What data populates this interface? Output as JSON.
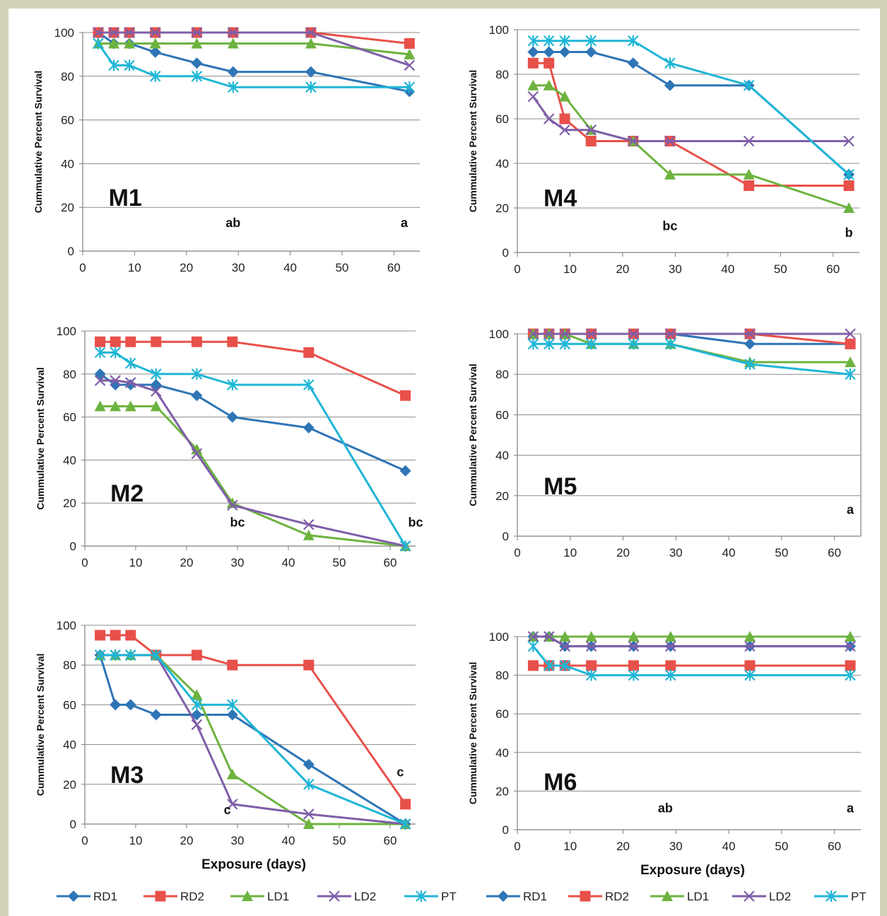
{
  "colors": {
    "RD1": "#2e75b6",
    "RD2": "#e8504a",
    "LD1": "#6db33f",
    "LD2": "#7f5ea8",
    "PT": "#1fb6d6",
    "grid": "#8c8c8c",
    "axis": "#7f7f7f",
    "page_background": "#d3d2b6"
  },
  "chart_data": [
    {
      "type": "line",
      "title": "M1",
      "xlabel": "",
      "ylabel": "Cummulative Percent Survival",
      "xlim": [
        0,
        65
      ],
      "ylim": [
        0,
        100
      ],
      "xticks": [
        0,
        10,
        20,
        30,
        40,
        50,
        60
      ],
      "yticks": [
        0,
        20,
        40,
        60,
        80,
        100
      ],
      "x": [
        3,
        6,
        9,
        14,
        22,
        29,
        44,
        63
      ],
      "series": [
        {
          "name": "RD1",
          "marker": "diamond",
          "values": [
            100,
            95,
            95,
            91,
            86,
            82,
            82,
            73
          ]
        },
        {
          "name": "RD2",
          "marker": "square",
          "values": [
            100,
            100,
            100,
            100,
            100,
            100,
            100,
            95
          ]
        },
        {
          "name": "LD1",
          "marker": "triangle",
          "values": [
            95,
            95,
            95,
            95,
            95,
            95,
            95,
            90
          ]
        },
        {
          "name": "LD2",
          "marker": "x",
          "values": [
            100,
            100,
            100,
            100,
            100,
            100,
            100,
            85
          ]
        },
        {
          "name": "PT",
          "marker": "star",
          "values": [
            95,
            85,
            85,
            80,
            80,
            75,
            75,
            75
          ]
        }
      ],
      "annotations": [
        {
          "text": "ab",
          "x": 29,
          "y": 11
        },
        {
          "text": "a",
          "x": 62,
          "y": 11
        }
      ]
    },
    {
      "type": "line",
      "title": "M4",
      "xlabel": "",
      "ylabel": "Cummulative Percent Survival",
      "xlim": [
        0,
        65
      ],
      "ylim": [
        0,
        100
      ],
      "xticks": [
        0,
        10,
        20,
        30,
        40,
        50,
        60
      ],
      "yticks": [
        0,
        20,
        40,
        60,
        80,
        100
      ],
      "x": [
        3,
        6,
        9,
        14,
        22,
        29,
        44,
        63
      ],
      "series": [
        {
          "name": "RD1",
          "marker": "diamond",
          "values": [
            90,
            90,
            90,
            90,
            85,
            75,
            75,
            35
          ]
        },
        {
          "name": "RD2",
          "marker": "square",
          "values": [
            85,
            85,
            60,
            50,
            50,
            50,
            30,
            30
          ]
        },
        {
          "name": "LD1",
          "marker": "triangle",
          "values": [
            75,
            75,
            70,
            55,
            50,
            35,
            35,
            20
          ]
        },
        {
          "name": "LD2",
          "marker": "x",
          "values": [
            70,
            60,
            55,
            55,
            50,
            50,
            50,
            50
          ]
        },
        {
          "name": "PT",
          "marker": "star",
          "values": [
            95,
            95,
            95,
            95,
            95,
            85,
            75,
            35
          ]
        }
      ],
      "annotations": [
        {
          "text": "bc",
          "x": 29,
          "y": 10
        },
        {
          "text": "b",
          "x": 63,
          "y": 7
        }
      ]
    },
    {
      "type": "line",
      "title": "M2",
      "xlabel": "",
      "ylabel": "Cummulative Percent Survival",
      "xlim": [
        0,
        65
      ],
      "ylim": [
        0,
        100
      ],
      "xticks": [
        0,
        10,
        20,
        30,
        40,
        50,
        60
      ],
      "yticks": [
        0,
        20,
        40,
        60,
        80,
        100
      ],
      "x": [
        3,
        6,
        9,
        14,
        22,
        29,
        44,
        63
      ],
      "series": [
        {
          "name": "RD1",
          "marker": "diamond",
          "values": [
            80,
            75,
            75,
            75,
            70,
            60,
            55,
            35
          ]
        },
        {
          "name": "RD2",
          "marker": "square",
          "values": [
            95,
            95,
            95,
            95,
            95,
            95,
            90,
            70
          ]
        },
        {
          "name": "LD1",
          "marker": "triangle",
          "values": [
            65,
            65,
            65,
            65,
            45,
            20,
            5,
            0
          ]
        },
        {
          "name": "LD2",
          "marker": "x",
          "values": [
            77,
            77,
            76,
            72,
            43,
            19,
            10,
            0
          ]
        },
        {
          "name": "PT",
          "marker": "star",
          "values": [
            90,
            90,
            85,
            80,
            80,
            75,
            75,
            0
          ]
        }
      ],
      "annotations": [
        {
          "text": "bc",
          "x": 30,
          "y": 9
        },
        {
          "text": "bc",
          "x": 65,
          "y": 9
        }
      ]
    },
    {
      "type": "line",
      "title": "M5",
      "xlabel": "",
      "ylabel": "Cummulative Percent Survival",
      "xlim": [
        0,
        65
      ],
      "ylim": [
        0,
        100
      ],
      "xticks": [
        0,
        10,
        20,
        30,
        40,
        50,
        60
      ],
      "yticks": [
        0,
        20,
        40,
        60,
        80,
        100
      ],
      "x": [
        3,
        6,
        9,
        14,
        22,
        29,
        44,
        63
      ],
      "series": [
        {
          "name": "RD1",
          "marker": "diamond",
          "values": [
            100,
            100,
            100,
            100,
            100,
            100,
            95,
            95
          ]
        },
        {
          "name": "RD2",
          "marker": "square",
          "values": [
            100,
            100,
            100,
            100,
            100,
            100,
            100,
            95
          ]
        },
        {
          "name": "LD1",
          "marker": "triangle",
          "values": [
            100,
            100,
            100,
            95,
            95,
            95,
            86,
            86
          ]
        },
        {
          "name": "LD2",
          "marker": "x",
          "values": [
            100,
            100,
            100,
            100,
            100,
            100,
            100,
            100
          ]
        },
        {
          "name": "PT",
          "marker": "star",
          "values": [
            95,
            95,
            95,
            95,
            95,
            95,
            85,
            80
          ]
        }
      ],
      "annotations": [
        {
          "text": "a",
          "x": 63,
          "y": 11
        }
      ]
    },
    {
      "type": "line",
      "title": "M3",
      "xlabel": "Exposure (days)",
      "ylabel": "Cummulative Percent Survival",
      "xlim": [
        0,
        65
      ],
      "ylim": [
        0,
        100
      ],
      "xticks": [
        0,
        10,
        20,
        30,
        40,
        50,
        60
      ],
      "yticks": [
        0,
        20,
        40,
        60,
        80,
        100
      ],
      "x": [
        3,
        6,
        9,
        14,
        22,
        29,
        44,
        63
      ],
      "series": [
        {
          "name": "RD1",
          "marker": "diamond",
          "values": [
            85,
            60,
            60,
            55,
            55,
            55,
            30,
            0
          ]
        },
        {
          "name": "RD2",
          "marker": "square",
          "values": [
            95,
            95,
            95,
            85,
            85,
            80,
            80,
            10
          ]
        },
        {
          "name": "LD1",
          "marker": "triangle",
          "values": [
            85,
            85,
            85,
            85,
            65,
            25,
            0,
            0
          ]
        },
        {
          "name": "LD2",
          "marker": "x",
          "values": [
            85,
            85,
            85,
            85,
            50,
            10,
            5,
            0
          ]
        },
        {
          "name": "PT",
          "marker": "star",
          "values": [
            85,
            85,
            85,
            85,
            60,
            60,
            20,
            0
          ]
        }
      ],
      "annotations": [
        {
          "text": "c",
          "x": 28,
          "y": 5
        },
        {
          "text": "c",
          "x": 62,
          "y": 24
        }
      ]
    },
    {
      "type": "line",
      "title": "M6",
      "xlabel": "Exposure (days)",
      "ylabel": "Cummulative Percent Survival",
      "xlim": [
        0,
        65
      ],
      "ylim": [
        0,
        100
      ],
      "xticks": [
        0,
        10,
        20,
        30,
        40,
        50,
        60
      ],
      "yticks": [
        0,
        20,
        40,
        60,
        80,
        100
      ],
      "x": [
        3,
        6,
        9,
        14,
        22,
        29,
        44,
        63
      ],
      "series": [
        {
          "name": "RD1",
          "marker": "diamond",
          "values": [
            100,
            100,
            95,
            95,
            95,
            95,
            95,
            95
          ]
        },
        {
          "name": "RD2",
          "marker": "square",
          "values": [
            85,
            85,
            85,
            85,
            85,
            85,
            85,
            85
          ]
        },
        {
          "name": "LD1",
          "marker": "triangle",
          "values": [
            100,
            100,
            100,
            100,
            100,
            100,
            100,
            100
          ]
        },
        {
          "name": "LD2",
          "marker": "x",
          "values": [
            100,
            100,
            95,
            95,
            95,
            95,
            95,
            95
          ]
        },
        {
          "name": "PT",
          "marker": "star",
          "values": [
            95,
            85,
            85,
            80,
            80,
            80,
            80,
            80
          ]
        }
      ],
      "annotations": [
        {
          "text": "ab",
          "x": 28,
          "y": 9
        },
        {
          "text": "a",
          "x": 63,
          "y": 9
        }
      ]
    }
  ],
  "legends": [
    {
      "items": [
        "RD1",
        "RD2",
        "LD1",
        "LD2",
        "PT"
      ]
    },
    {
      "items": [
        "RD1",
        "RD2",
        "LD1",
        "LD2",
        "PT"
      ]
    }
  ]
}
